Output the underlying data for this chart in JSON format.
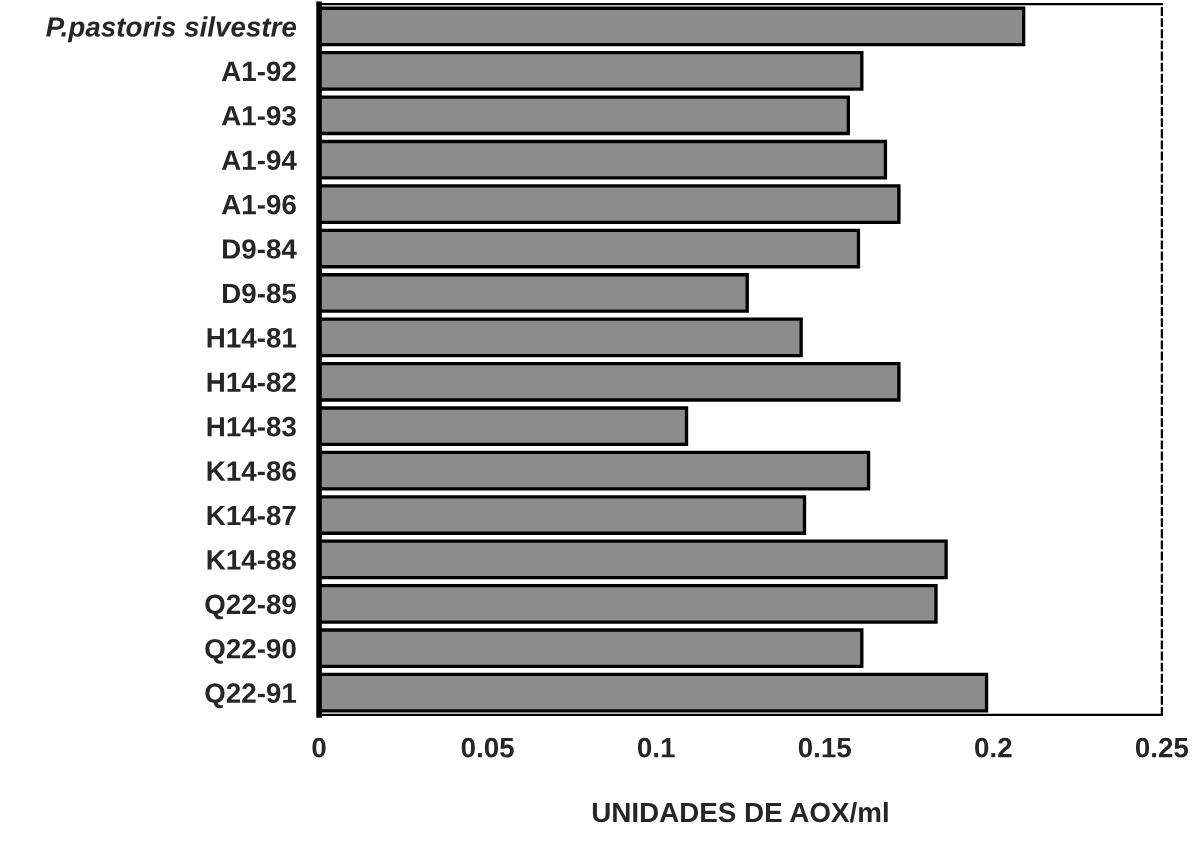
{
  "chart_data": {
    "type": "bar",
    "orientation": "horizontal",
    "xlabel": "UNIDADES DE AOX/ml",
    "categories": [
      "P.pastoris silvestre",
      "A1-92",
      "A1-93",
      "A1-94",
      "A1-96",
      "D9-84",
      "D9-85",
      "H14-81",
      "H14-82",
      "H14-83",
      "K14-86",
      "K14-87",
      "K14-88",
      "Q22-89",
      "Q22-90",
      "Q22-91"
    ],
    "values": [
      0.209,
      0.161,
      0.157,
      0.168,
      0.172,
      0.16,
      0.127,
      0.143,
      0.172,
      0.109,
      0.163,
      0.144,
      0.186,
      0.183,
      0.161,
      0.198
    ],
    "color": "#8c8c8c",
    "xlim": [
      0,
      0.25
    ],
    "xticks": [
      0,
      0.05,
      0.1,
      0.15,
      0.2,
      0.25
    ],
    "grid": false
  }
}
